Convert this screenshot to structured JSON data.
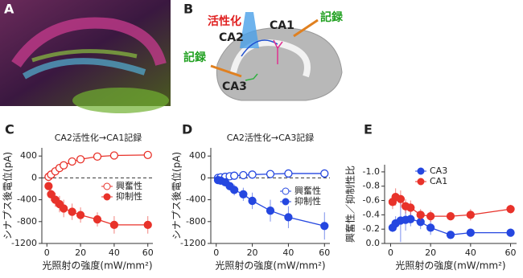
{
  "panels": {
    "A": "A",
    "B": "B"
  },
  "diagram": {
    "labels": [
      "活性化",
      "CA2",
      "CA1",
      "記録",
      "記録",
      "CA3"
    ]
  },
  "chart_data": [
    {
      "type": "line",
      "panel": "C",
      "title": "CA2活性化→CA1記録",
      "xlabel": "光照射の強度(mW/mm²)",
      "ylabel": "シナプス後電位(pA)",
      "x": [
        1,
        2.5,
        5,
        7.5,
        10,
        15,
        20,
        30,
        40,
        60
      ],
      "xlim": [
        -3,
        63
      ],
      "xticks": [
        0,
        20,
        40,
        60
      ],
      "ylim": [
        -1200,
        550
      ],
      "yticks": [
        400,
        0,
        -400,
        -800,
        -1200
      ],
      "zero_line": true,
      "series": [
        {
          "name": "興奮性",
          "color": "#e8322a",
          "marker": "open",
          "values": [
            20,
            60,
            120,
            180,
            230,
            300,
            340,
            390,
            410,
            420
          ],
          "errors": [
            20,
            30,
            30,
            30,
            40,
            40,
            40,
            40,
            40,
            50
          ]
        },
        {
          "name": "抑制性",
          "color": "#e8322a",
          "marker": "filled",
          "values": [
            -150,
            -300,
            -400,
            -480,
            -560,
            -620,
            -680,
            -760,
            -860,
            -860
          ],
          "errors": [
            60,
            120,
            130,
            150,
            160,
            150,
            140,
            130,
            160,
            160
          ]
        }
      ]
    },
    {
      "type": "line",
      "panel": "D",
      "title": "CA2活性化→CA3記録",
      "xlabel": "光照射の強度(mW/mm²)",
      "ylabel": "シナプス後電位(pA)",
      "x": [
        1,
        2.5,
        5,
        7.5,
        10,
        15,
        20,
        30,
        40,
        60
      ],
      "xlim": [
        -3,
        63
      ],
      "xticks": [
        0,
        20,
        40,
        60
      ],
      "ylim": [
        -1200,
        550
      ],
      "yticks": [
        400,
        0,
        -400,
        -800,
        -1200
      ],
      "zero_line": true,
      "series": [
        {
          "name": "興奮性",
          "color": "#2547e0",
          "marker": "open",
          "values": [
            0,
            10,
            20,
            30,
            40,
            50,
            60,
            70,
            80,
            80
          ],
          "errors": [
            20,
            20,
            20,
            30,
            30,
            30,
            30,
            40,
            40,
            50
          ]
        },
        {
          "name": "抑制性",
          "color": "#2547e0",
          "marker": "filled",
          "values": [
            -40,
            -50,
            -80,
            -150,
            -220,
            -300,
            -420,
            -600,
            -720,
            -880
          ],
          "errors": [
            30,
            40,
            60,
            80,
            100,
            120,
            150,
            200,
            200,
            250
          ]
        }
      ]
    },
    {
      "type": "line",
      "panel": "E",
      "xlabel": "光照射の強度(mW/mm²)",
      "ylabel": "興奮性／抑制性比",
      "x": [
        1,
        2.5,
        5,
        7.5,
        10,
        15,
        20,
        30,
        40,
        60
      ],
      "xlim": [
        -3,
        63
      ],
      "xticks": [
        0,
        20,
        40,
        60
      ],
      "ylim": [
        0,
        -1.1
      ],
      "yticks": [
        {
          "value": -1,
          "label": "-1.0"
        },
        -0.8,
        -0.6,
        -0.4,
        -0.2,
        {
          "value": 0,
          "label": "0.0"
        }
      ],
      "series": [
        {
          "name": "CA3",
          "color": "#2547e0",
          "marker": "filled",
          "values": [
            -0.22,
            -0.28,
            -0.32,
            -0.33,
            -0.34,
            -0.3,
            -0.22,
            -0.12,
            -0.15,
            -0.15
          ],
          "errors": [
            0.06,
            0.1,
            0.3,
            0.15,
            0.1,
            0.1,
            0.1,
            0.05,
            0.05,
            0.05
          ]
        },
        {
          "name": "CA1",
          "color": "#e8322a",
          "marker": "filled",
          "values": [
            -0.58,
            -0.65,
            -0.62,
            -0.52,
            -0.5,
            -0.4,
            -0.38,
            -0.38,
            -0.4,
            -0.48
          ],
          "errors": [
            0.1,
            0.12,
            0.12,
            0.1,
            0.1,
            0.08,
            0.08,
            0.06,
            0.08,
            0.06
          ]
        }
      ]
    }
  ]
}
